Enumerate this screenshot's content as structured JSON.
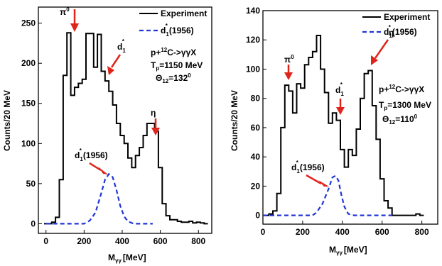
{
  "chart_data": [
    {
      "type": "line",
      "xlabel": "M",
      "xlabel_sub": "γγ",
      "xunit": "[MeV]",
      "ylabel": "Counts/20 MeV",
      "xlim": [
        -40,
        870
      ],
      "ylim": [
        -12,
        270
      ],
      "xticks": [
        0,
        200,
        400,
        600,
        800
      ],
      "yticks": [
        0,
        50,
        100,
        150,
        200,
        250
      ],
      "legend_position": "top-right",
      "series": [
        {
          "name": "Experiment",
          "style": "step",
          "color": "#000000",
          "x": [
            0,
            20,
            40,
            60,
            80,
            100,
            120,
            140,
            160,
            180,
            200,
            220,
            240,
            260,
            280,
            300,
            320,
            340,
            360,
            380,
            400,
            420,
            440,
            460,
            480,
            500,
            520,
            540,
            560,
            580,
            600,
            620,
            640,
            660,
            680,
            700,
            720,
            740,
            760,
            780,
            800,
            820,
            840
          ],
          "y": [
            0,
            0,
            2,
            8,
            55,
            185,
            238,
            160,
            170,
            175,
            180,
            237,
            237,
            195,
            236,
            190,
            178,
            165,
            148,
            125,
            110,
            100,
            82,
            70,
            85,
            95,
            110,
            125,
            125,
            115,
            70,
            25,
            10,
            5,
            5,
            3,
            2,
            2,
            3,
            1,
            2,
            1,
            0
          ]
        },
        {
          "name": "d",
          "name_sub": "1",
          "name_sup": "*",
          "name_tail": "(1956)",
          "style": "dashed",
          "color": "#1f35d6",
          "x": [
            0,
            50,
            100,
            150,
            200,
            230,
            260,
            290,
            310,
            330,
            350,
            370,
            390,
            410,
            430,
            460,
            500,
            560
          ],
          "y": [
            0,
            0,
            0,
            0,
            0,
            4,
            14,
            38,
            55,
            62,
            58,
            42,
            22,
            9,
            3,
            0,
            0,
            0
          ]
        }
      ],
      "annotations": [
        {
          "base": "π",
          "sup": "0"
        },
        {
          "base": "d",
          "sub": "1",
          "sup": "*"
        },
        {
          "base": "η"
        },
        {
          "base": "d",
          "sub": "1",
          "sup": "*",
          "tail": "(1956)"
        }
      ],
      "reaction": {
        "p": "p+",
        "sup": "12",
        "rest": "C->γγX"
      },
      "energy": {
        "t": "T",
        "sub": "p",
        "rest": "=1150 MeV"
      },
      "angle": {
        "theta": "Θ",
        "sub": "12",
        "rest": "=132",
        "sup": "0"
      }
    },
    {
      "type": "line",
      "xlabel": "M",
      "xlabel_sub": "γγ",
      "xunit": "[MeV]",
      "ylabel": "Counts/20 MeV",
      "xlim": [
        0,
        880
      ],
      "ylim": [
        -6,
        140
      ],
      "xticks": [
        0,
        200,
        400,
        600,
        800
      ],
      "yticks": [
        0,
        20,
        40,
        60,
        80,
        100,
        120,
        140
      ],
      "legend_position": "top-right",
      "series": [
        {
          "name": "Experiment",
          "style": "step",
          "color": "#000000",
          "x": [
            0,
            20,
            40,
            60,
            80,
            100,
            120,
            140,
            160,
            180,
            200,
            220,
            240,
            260,
            280,
            300,
            320,
            340,
            360,
            380,
            400,
            420,
            440,
            460,
            480,
            500,
            520,
            540,
            560,
            580,
            600,
            620,
            640,
            660,
            680,
            700,
            720,
            740,
            760,
            780,
            800
          ],
          "y": [
            0,
            0,
            1,
            3,
            15,
            60,
            89,
            85,
            70,
            90,
            87,
            103,
            108,
            112,
            123,
            100,
            84,
            63,
            70,
            65,
            45,
            33,
            45,
            41,
            59,
            80,
            97,
            99,
            75,
            52,
            25,
            10,
            5,
            0,
            0,
            0,
            0,
            0,
            0,
            1,
            0
          ]
        },
        {
          "name": "d",
          "name_sub": "1",
          "name_sup": "*",
          "name_tail": "(1956)",
          "style": "dashed",
          "color": "#1f35d6",
          "x": [
            0,
            50,
            100,
            150,
            200,
            250,
            270,
            300,
            330,
            350,
            365,
            380,
            395,
            410,
            430,
            460,
            500,
            550,
            600,
            650
          ],
          "y": [
            0,
            0,
            0,
            0,
            0,
            0,
            2,
            8,
            18,
            26,
            27,
            24,
            14,
            6,
            1,
            0,
            0,
            0,
            0,
            0
          ]
        }
      ],
      "annotations": [
        {
          "base": "π",
          "sup": "0"
        },
        {
          "base": "d",
          "sub": "1",
          "sup": "*"
        },
        {
          "base": "η"
        },
        {
          "base": "d",
          "sub": "1",
          "sup": "*",
          "tail": "(1956)"
        }
      ],
      "reaction": {
        "p": "p+",
        "sup": "12",
        "rest": "C->γγX"
      },
      "energy": {
        "t": "T",
        "sub": "p",
        "rest": "=1300 MeV"
      },
      "angle": {
        "theta": "Θ",
        "sub": "12",
        "rest": "=110",
        "sup": "0"
      }
    }
  ]
}
